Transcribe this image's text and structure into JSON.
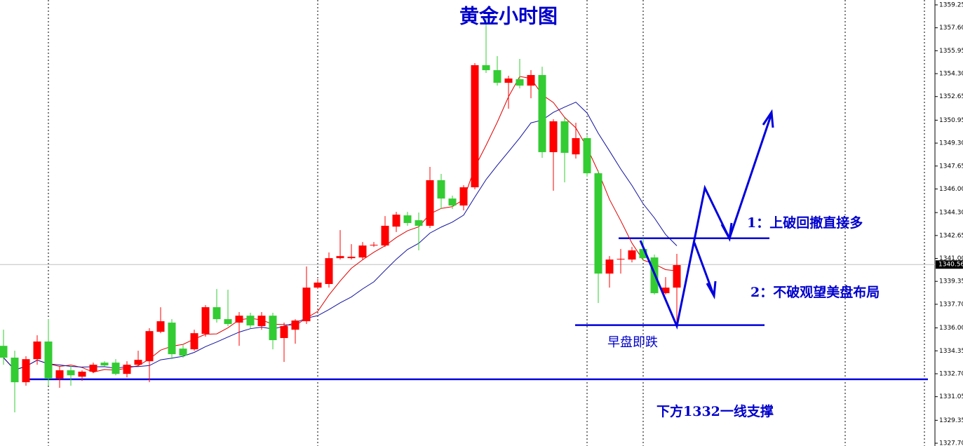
{
  "chart_data": {
    "type": "candlestick",
    "title": "黄金小时图",
    "up_color": "#ff0000",
    "down_color": "#33cc33",
    "open": [
      1334.71,
      1333.86,
      1332.09,
      1333.75,
      1335.02,
      1332.34,
      1332.95,
      1332.49,
      1332.85,
      1333.5,
      1333.5,
      1332.69,
      1333.35,
      1333.6,
      1335.72,
      1336.38,
      1334.51,
      1334.46,
      1335.57,
      1337.49,
      1336.63,
      1336.38,
      1336.88,
      1336.13,
      1336.88,
      1335.27,
      1335.87,
      1336.48,
      1338.9,
      1339.16,
      1341.02,
      1341.02,
      1341.07,
      1341.93,
      1341.93,
      1343.29,
      1344.1,
      1343.75,
      1343.35,
      1346.63,
      1345.31,
      1344.81,
      1346.12,
      1354.91,
      1354.55,
      1353.64,
      1353.9,
      1353.44,
      1354.2,
      1348.65,
      1350.87,
      1348.49,
      1349.66,
      1347.13,
      1339.91,
      1340.92,
      1340.92,
      1341.68,
      1341.07,
      1338.5,
      1338.9
    ],
    "high": [
      1335.87,
      1334.36,
      1333.96,
      1335.47,
      1336.63,
      1333.25,
      1333.25,
      1332.95,
      1333.5,
      1333.6,
      1333.75,
      1333.6,
      1334.36,
      1335.98,
      1337.49,
      1336.63,
      1334.76,
      1335.87,
      1337.64,
      1338.8,
      1338.75,
      1337.14,
      1337.09,
      1337.14,
      1337.09,
      1336.38,
      1336.63,
      1340.42,
      1339.51,
      1341.43,
      1343.04,
      1342.03,
      1342.18,
      1342.18,
      1344.05,
      1344.35,
      1344.35,
      1344.3,
      1347.59,
      1347.08,
      1345.52,
      1346.27,
      1355.06,
      1358.34,
      1355.56,
      1354.15,
      1355.36,
      1354.55,
      1354.8,
      1351.02,
      1351.12,
      1350.77,
      1349.86,
      1347.33,
      1341.17,
      1341.68,
      1341.83,
      1342.44,
      1341.28,
      1339.66,
      1341.33
    ],
    "low": [
      1333.35,
      1329.92,
      1331.84,
      1333.35,
      1331.84,
      1331.69,
      1331.84,
      1332.19,
      1332.74,
      1333.25,
      1332.59,
      1332.44,
      1333.25,
      1332.09,
      1335.62,
      1333.75,
      1333.86,
      1334.36,
      1335.37,
      1336.38,
      1336.13,
      1334.71,
      1335.98,
      1335.87,
      1334.46,
      1333.55,
      1334.86,
      1336.28,
      1338.8,
      1338.9,
      1340.92,
      1340.92,
      1340.92,
      1341.83,
      1341.83,
      1342.9,
      1343.35,
      1341.58,
      1343.19,
      1344.56,
      1344.56,
      1344.46,
      1345.97,
      1354.35,
      1353.44,
      1351.78,
      1353.24,
      1352.53,
      1348.24,
      1345.87,
      1346.48,
      1348.19,
      1346.88,
      1337.79,
      1338.9,
      1339.91,
      1340.72,
      1340.82,
      1338.4,
      1338.4,
      1336.38
    ],
    "close": [
      1333.86,
      1332.09,
      1333.75,
      1335.02,
      1332.34,
      1332.95,
      1332.59,
      1332.85,
      1333.35,
      1333.3,
      1332.69,
      1333.35,
      1333.7,
      1335.77,
      1336.48,
      1334.11,
      1334.01,
      1335.62,
      1337.49,
      1336.63,
      1336.28,
      1336.88,
      1336.18,
      1336.88,
      1335.12,
      1336.13,
      1336.53,
      1338.9,
      1339.26,
      1341.02,
      1341.17,
      1341.12,
      1341.93,
      1341.98,
      1343.35,
      1344.15,
      1343.55,
      1343.35,
      1346.63,
      1345.31,
      1344.81,
      1346.12,
      1354.91,
      1354.55,
      1353.64,
      1353.95,
      1353.44,
      1354.2,
      1348.65,
      1350.87,
      1348.6,
      1349.66,
      1347.13,
      1339.91,
      1340.92,
      1340.97,
      1341.58,
      1341.02,
      1338.5,
      1338.9,
      1340.52
    ],
    "ma": [
      {
        "period": 5,
        "color": "#e00000"
      },
      {
        "period": 10,
        "color": "#1010a0"
      }
    ],
    "ylim": [
      1327.5,
      1359.6
    ],
    "yticks": [
      1359.25,
      {
        "value": 1357.6,
        "label": "1357.60"
      },
      1355.95,
      {
        "value": 1354.3,
        "label": "1354.30"
      },
      1352.65,
      1350.95,
      {
        "value": 1349.3,
        "label": "1349.30"
      },
      1347.65,
      {
        "value": 1346,
        "label": "1346.00"
      },
      {
        "value": 1344.3,
        "label": "1344.30"
      },
      1342.65,
      {
        "value": 1341,
        "label": "1341.00"
      },
      1339.35,
      {
        "value": 1337.7,
        "label": "1337.70"
      },
      {
        "value": 1336,
        "label": "1336.00"
      },
      1334.35,
      {
        "value": 1332.7,
        "label": "1332.70"
      },
      1331.05,
      1329.35,
      {
        "value": 1327.7,
        "label": "1327.70"
      }
    ],
    "current_price": 1340.56,
    "levels": [
      1342.45,
      1336.2,
      1332.3
    ],
    "level_color": "#0000dd",
    "annotations": [
      "1：上破回撤直接多",
      "2：不破观望美盘布局",
      "早盘即跌",
      "下方1332一线支撑"
    ]
  }
}
